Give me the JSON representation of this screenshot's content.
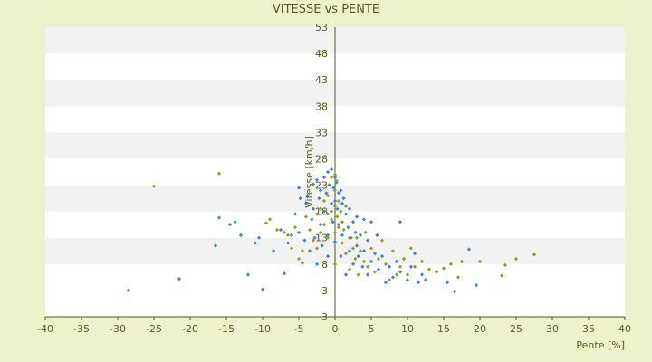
{
  "chart_data": {
    "type": "scatter",
    "title": "VITESSE vs PENTE",
    "xlabel": "Pente [%]",
    "ylabel": "Vitesse [km/h]",
    "xlim": [
      -40,
      40
    ],
    "ylim": [
      -2,
      53
    ],
    "x_ticks": [
      -40,
      -35,
      -30,
      -25,
      -20,
      -15,
      -10,
      -5,
      0,
      5,
      10,
      15,
      20,
      25,
      30,
      35,
      40
    ],
    "y_ticks": [
      3,
      8,
      13,
      18,
      23,
      28,
      33,
      38,
      43,
      48,
      53
    ],
    "grid": "horizontal-bands",
    "colors": {
      "background": "#eef2cc",
      "plot_band_a": "#ffffff",
      "plot_band_b": "#f2f2f2",
      "text": "#5a5a1e",
      "axis": "#55551a"
    },
    "series": [
      {
        "color": "#3a86d8",
        "points": [
          [
            -28.5,
            3
          ],
          [
            -21.5,
            5.2
          ],
          [
            -16.5,
            11.5
          ],
          [
            -16,
            16.8
          ],
          [
            -14.5,
            15.5
          ],
          [
            -13.8,
            16
          ],
          [
            -13,
            13.5
          ],
          [
            -12,
            6
          ],
          [
            -11,
            12
          ],
          [
            -10.5,
            13
          ],
          [
            -10,
            3.2
          ],
          [
            -8.5,
            10.5
          ],
          [
            -7.5,
            14.5
          ],
          [
            -7,
            6.2
          ],
          [
            -6.5,
            12
          ],
          [
            -6,
            13.5
          ],
          [
            -5.5,
            17.5
          ],
          [
            -5,
            22.5
          ],
          [
            -5,
            14
          ],
          [
            -4.8,
            20.5
          ],
          [
            -4.5,
            8.2
          ],
          [
            -4.2,
            12.5
          ],
          [
            -4,
            19.5
          ],
          [
            -3.8,
            21
          ],
          [
            -3.5,
            10.5
          ],
          [
            -3.2,
            16.5
          ],
          [
            -3,
            23.2
          ],
          [
            -3,
            18.5
          ],
          [
            -2.8,
            13
          ],
          [
            -2.5,
            24
          ],
          [
            -2.5,
            8
          ],
          [
            -2.2,
            20.5
          ],
          [
            -2,
            22
          ],
          [
            -2,
            15.5
          ],
          [
            -1.8,
            11.5
          ],
          [
            -1.5,
            24.5
          ],
          [
            -1.5,
            18
          ],
          [
            -1.2,
            21.5
          ],
          [
            -1,
            25.5
          ],
          [
            -1,
            13.5
          ],
          [
            -1,
            9.5
          ],
          [
            -0.8,
            23
          ],
          [
            -0.5,
            26
          ],
          [
            -0.5,
            19.5
          ],
          [
            -0.3,
            16
          ],
          [
            -0.2,
            22.5
          ],
          [
            0,
            24.5
          ],
          [
            0,
            20
          ],
          [
            0,
            12.2
          ],
          [
            0.2,
            23.5
          ],
          [
            0.3,
            18.5
          ],
          [
            0.5,
            21.5
          ],
          [
            0.5,
            15.5
          ],
          [
            0.8,
            22
          ],
          [
            0.8,
            9.5
          ],
          [
            1,
            19.5
          ],
          [
            1,
            13.5
          ],
          [
            1.2,
            20.5
          ],
          [
            1.5,
            17.5
          ],
          [
            1.5,
            6
          ],
          [
            1.8,
            15
          ],
          [
            2,
            18.5
          ],
          [
            2,
            10.5
          ],
          [
            2.2,
            13
          ],
          [
            2.5,
            16
          ],
          [
            2.5,
            8
          ],
          [
            2.8,
            14
          ],
          [
            3,
            11.5
          ],
          [
            3,
            17
          ],
          [
            3.2,
            9.5
          ],
          [
            3.5,
            13.5
          ],
          [
            3.8,
            7.5
          ],
          [
            4,
            16.5
          ],
          [
            4,
            10.5
          ],
          [
            4.5,
            12.5
          ],
          [
            4.5,
            6
          ],
          [
            5,
            8.5
          ],
          [
            5,
            16
          ],
          [
            5.5,
            10
          ],
          [
            5.8,
            13.5
          ],
          [
            6,
            7
          ],
          [
            6.5,
            9.5
          ],
          [
            7,
            4.5
          ],
          [
            7.5,
            7.5
          ],
          [
            8,
            5.5
          ],
          [
            8.5,
            8.5
          ],
          [
            9,
            6.5
          ],
          [
            9,
            16
          ],
          [
            9.5,
            9
          ],
          [
            10,
            5
          ],
          [
            10.5,
            7.5
          ],
          [
            11,
            10
          ],
          [
            11.5,
            4.5
          ],
          [
            12,
            6
          ],
          [
            12.5,
            5
          ],
          [
            14,
            6.5
          ],
          [
            15.5,
            4.5
          ],
          [
            16.5,
            2.8
          ],
          [
            18.5,
            10.8
          ],
          [
            19.5,
            4
          ]
        ]
      },
      {
        "color": "#9a9a2c",
        "points": [
          [
            -25,
            22.8
          ],
          [
            -16,
            25.2
          ],
          [
            -9.5,
            15.8
          ],
          [
            -9,
            16.5
          ],
          [
            -8,
            14.5
          ],
          [
            -7,
            14
          ],
          [
            -6.5,
            13.5
          ],
          [
            -6,
            11
          ],
          [
            -5.5,
            15
          ],
          [
            -5,
            9
          ],
          [
            -4.5,
            10.5
          ],
          [
            -4,
            17
          ],
          [
            -3.5,
            14.5
          ],
          [
            -3,
            12.5
          ],
          [
            -2.5,
            17.5
          ],
          [
            -2.5,
            11
          ],
          [
            -2,
            18.5
          ],
          [
            -2,
            14
          ],
          [
            -1.5,
            20
          ],
          [
            -1.5,
            15.5
          ],
          [
            -1,
            21
          ],
          [
            -1,
            17.5
          ],
          [
            -1,
            13
          ],
          [
            -0.5,
            24.5
          ],
          [
            -0.5,
            18
          ],
          [
            -0.5,
            16.5
          ],
          [
            0,
            25
          ],
          [
            0,
            22
          ],
          [
            0,
            19
          ],
          [
            0,
            14
          ],
          [
            0,
            8
          ],
          [
            0.2,
            23.8
          ],
          [
            0.3,
            17
          ],
          [
            0.5,
            20
          ],
          [
            0.5,
            15
          ],
          [
            0.8,
            18
          ],
          [
            1,
            16
          ],
          [
            1,
            12
          ],
          [
            1.2,
            14.5
          ],
          [
            1.5,
            10
          ],
          [
            1.5,
            19
          ],
          [
            2,
            13
          ],
          [
            2,
            7
          ],
          [
            2.5,
            11
          ],
          [
            2.8,
            9
          ],
          [
            3,
            13
          ],
          [
            3.2,
            6
          ],
          [
            3.5,
            10.5
          ],
          [
            4,
            8.5
          ],
          [
            4.2,
            14
          ],
          [
            4.5,
            7.5
          ],
          [
            5,
            11
          ],
          [
            5.5,
            6.5
          ],
          [
            6,
            9
          ],
          [
            6.5,
            12.5
          ],
          [
            7,
            8
          ],
          [
            7.5,
            5
          ],
          [
            8,
            10.5
          ],
          [
            8.5,
            6
          ],
          [
            9,
            7.5
          ],
          [
            9.5,
            9
          ],
          [
            10,
            6
          ],
          [
            10.5,
            11
          ],
          [
            11,
            7.5
          ],
          [
            12,
            8.5
          ],
          [
            13,
            7
          ],
          [
            14,
            6.5
          ],
          [
            15,
            7.2
          ],
          [
            16,
            8
          ],
          [
            17,
            5.5
          ],
          [
            17.5,
            8.5
          ],
          [
            20,
            8.5
          ],
          [
            23,
            5.8
          ],
          [
            23.5,
            7.8
          ],
          [
            25,
            9
          ],
          [
            27.5,
            9.8
          ]
        ]
      }
    ]
  }
}
